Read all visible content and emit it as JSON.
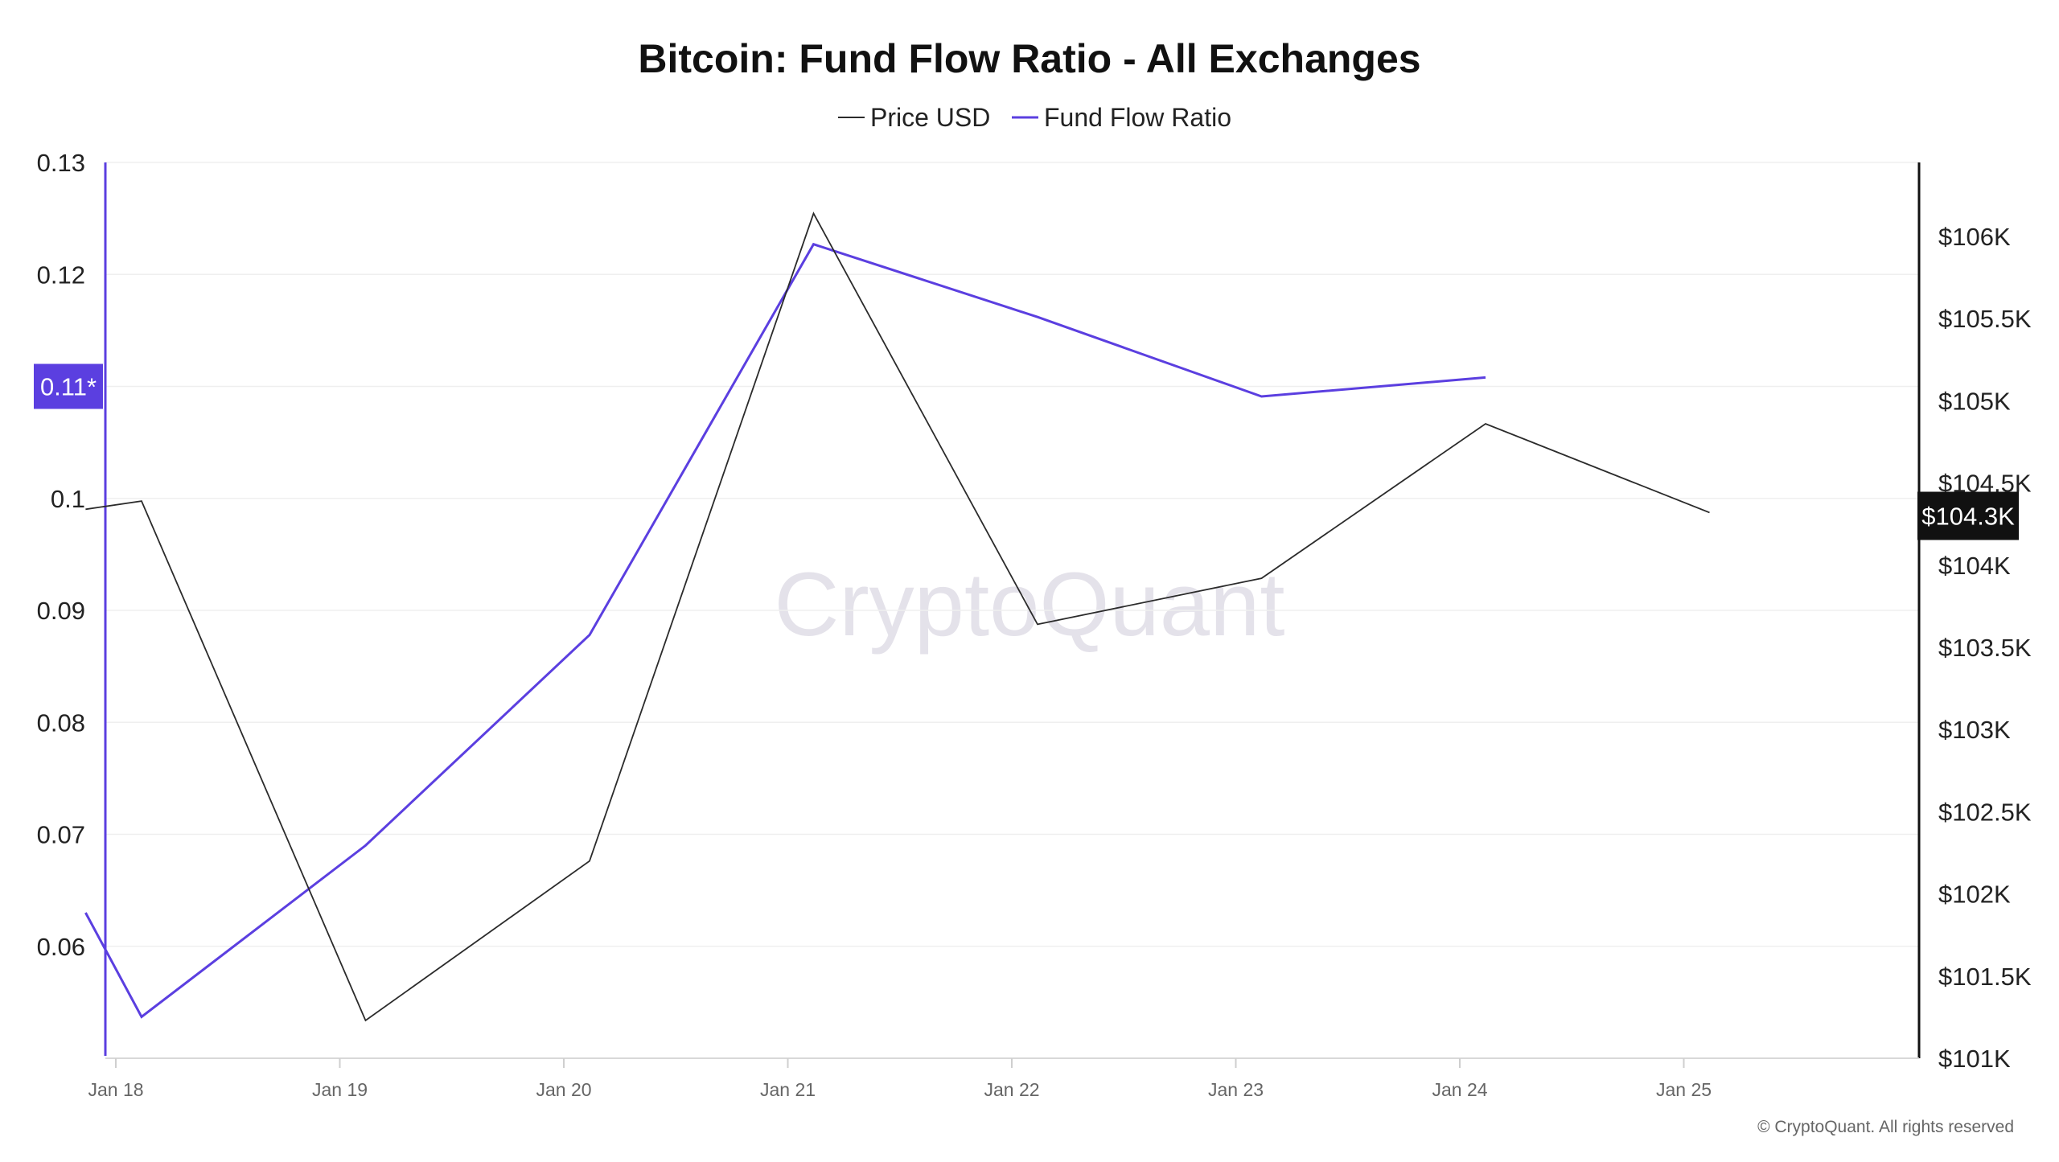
{
  "title": "Bitcoin: Fund Flow Ratio - All Exchanges",
  "watermark": "CryptoQuant",
  "copyright": "© CryptoQuant. All rights reserved",
  "colors": {
    "price": "#2b2b2b",
    "fund_flow": "#5b3fe0",
    "badge_left_bg": "#5b3fe0",
    "badge_right_bg": "#111111",
    "grid": "#efefef"
  },
  "chart_data": {
    "type": "line",
    "title": "Bitcoin: Fund Flow Ratio - All Exchanges",
    "x_ticks": [
      "Jan 18",
      "Jan 19",
      "Jan 20",
      "Jan 21",
      "Jan 22",
      "Jan 23",
      "Jan 24",
      "Jan 25"
    ],
    "legend": [
      "Price USD",
      "Fund Flow Ratio"
    ],
    "legend_position": "top-center",
    "grid": true,
    "left_axis": {
      "series": "Fund Flow Ratio",
      "ticks": [
        "0.13",
        "0.12",
        "0.1",
        "0.09",
        "0.08",
        "0.07",
        "0.06"
      ],
      "ylim": [
        0.05,
        0.13
      ],
      "current_value_label": "0.11*"
    },
    "right_axis": {
      "series": "Price USD",
      "ticks": [
        "$106K",
        "$105.5K",
        "$105K",
        "$104.5K",
        "$104K",
        "$103.5K",
        "$103K",
        "$102.5K",
        "$102K",
        "$101.5K",
        "$101K"
      ],
      "ylim": [
        101000,
        106450
      ],
      "current_value_label": "$104.3K"
    },
    "series": [
      {
        "name": "Fund Flow Ratio",
        "axis": "left",
        "x": [
          "2025-01-17 18:00",
          "2025-01-18",
          "2025-01-19",
          "2025-01-20",
          "2025-01-21",
          "2025-01-22",
          "2025-01-23",
          "2025-01-24"
        ],
        "values": [
          0.063,
          0.0537,
          0.069,
          0.0878,
          0.1227,
          0.1162,
          0.1091,
          0.1108
        ]
      },
      {
        "name": "Price USD",
        "axis": "right",
        "x": [
          "2025-01-17 18:00",
          "2025-01-18",
          "2025-01-19",
          "2025-01-20",
          "2025-01-21",
          "2025-01-22",
          "2025-01-23",
          "2025-01-24",
          "2025-01-25"
        ],
        "values": [
          104340,
          104390,
          101230,
          102200,
          106140,
          103640,
          103920,
          104860,
          104320
        ]
      }
    ]
  }
}
